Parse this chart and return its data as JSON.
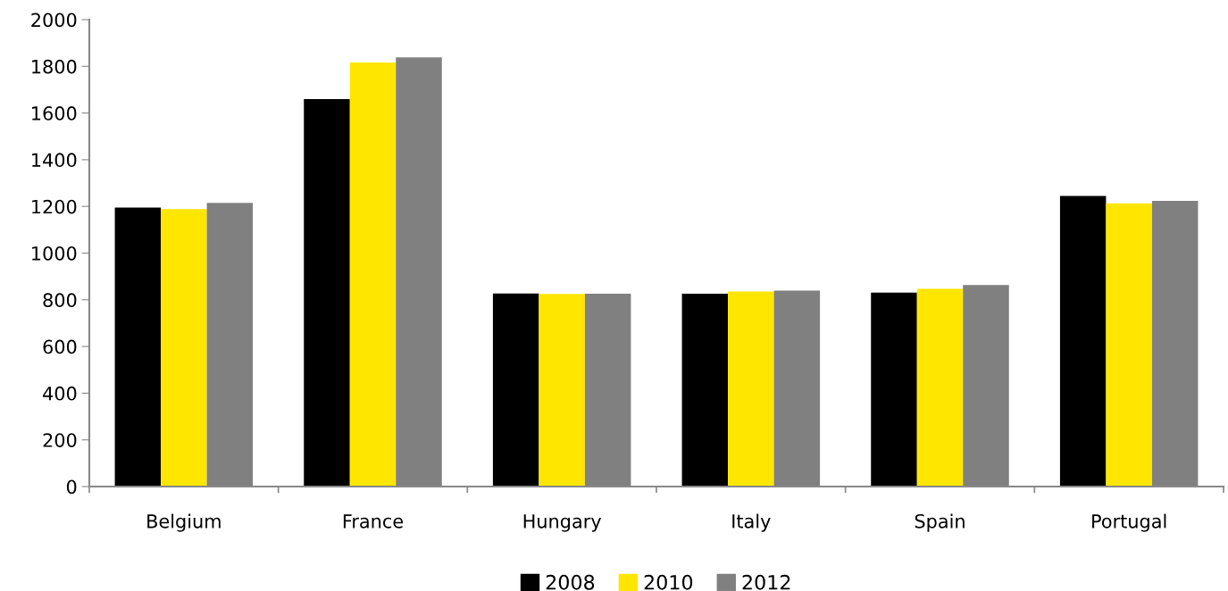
{
  "chart_data": {
    "type": "bar",
    "categories": [
      "Belgium",
      "France",
      "Hungary",
      "Italy",
      "Spain",
      "Portugal"
    ],
    "series": [
      {
        "name": "2008",
        "color": "#000000",
        "values": [
          1195,
          1660,
          827,
          826,
          831,
          1245
        ]
      },
      {
        "name": "2010",
        "color": "#ffe600",
        "values": [
          1188,
          1816,
          825,
          836,
          847,
          1213
        ]
      },
      {
        "name": "2012",
        "color": "#808080",
        "values": [
          1215,
          1838,
          826,
          839,
          863,
          1224
        ]
      }
    ],
    "ylim": [
      0,
      2000
    ],
    "yticks": [
      0,
      200,
      400,
      600,
      800,
      1000,
      1200,
      1400,
      1600,
      1800,
      2000
    ],
    "grid": false,
    "legend": "bottom"
  }
}
